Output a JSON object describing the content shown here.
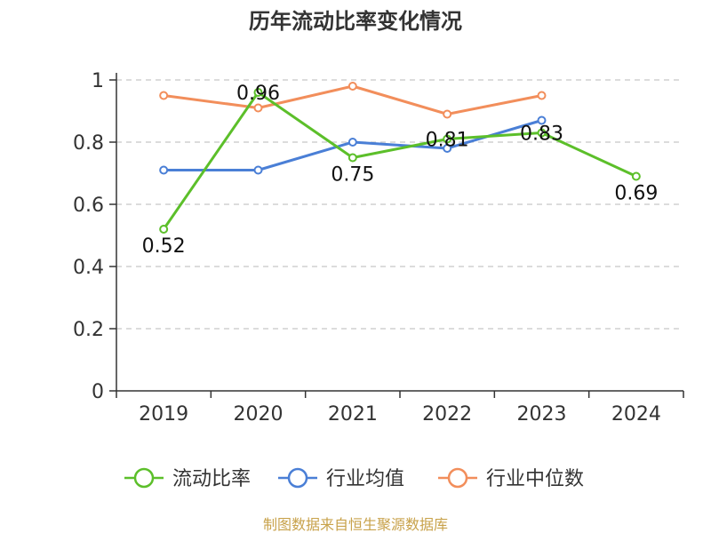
{
  "chart_data": {
    "type": "line",
    "title": "历年流动比率变化情况",
    "categories": [
      "2019",
      "2020",
      "2021",
      "2022",
      "2023",
      "2024"
    ],
    "ylim": [
      0,
      1
    ],
    "yticks": [
      0,
      0.2,
      0.4,
      0.6,
      0.8,
      1
    ],
    "ytick_labels": [
      "0",
      "0.2",
      "0.4",
      "0.6",
      "0.8",
      "1"
    ],
    "grid": true,
    "legend_position": "bottom",
    "series": [
      {
        "name": "流动比率",
        "color": "#5cbf2a",
        "values": [
          0.52,
          0.96,
          0.75,
          0.81,
          0.83,
          0.69
        ],
        "labels": [
          "0.52",
          "0.96",
          "0.75",
          "0.81",
          "0.83",
          "0.69"
        ]
      },
      {
        "name": "行业均值",
        "color": "#4a7fd6",
        "values": [
          0.71,
          0.71,
          0.8,
          0.78,
          0.87,
          null
        ]
      },
      {
        "name": "行业中位数",
        "color": "#f28e5b",
        "values": [
          0.95,
          0.91,
          0.98,
          0.89,
          0.95,
          null
        ]
      }
    ],
    "source": "制图数据来自恒生聚源数据库"
  }
}
